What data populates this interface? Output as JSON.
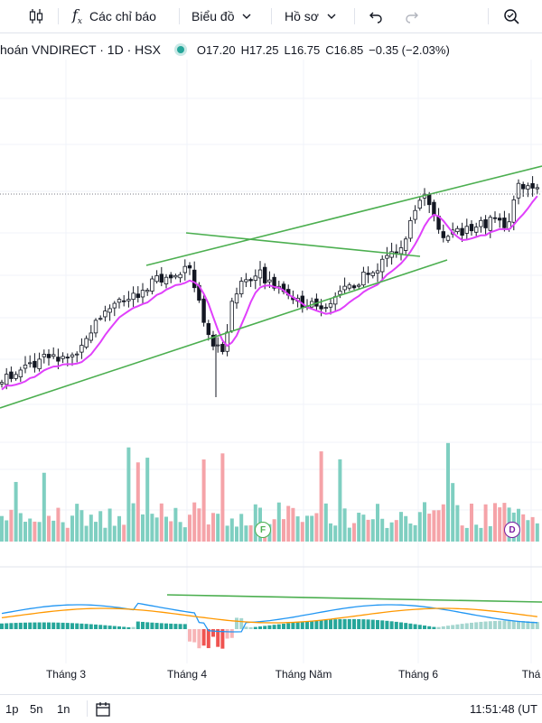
{
  "toolbar": {
    "indicators_label": "Các chỉ báo",
    "chart_label": "Biểu đồ",
    "profile_label": "Hồ sơ"
  },
  "legend": {
    "symbol": "hoán VNDIRECT · 1D · HSX",
    "open": "O17.20",
    "high": "H17.25",
    "low": "L16.75",
    "close": "C16.85",
    "change": "−0.35 (−2.03%)"
  },
  "xaxis": {
    "labels": [
      "Tháng 3",
      "Tháng 4",
      "Tháng Năm",
      "Tháng 6",
      "Thá"
    ]
  },
  "markers": {
    "f": "F",
    "d": "D"
  },
  "bottom": {
    "ranges": [
      "1p",
      "5n",
      "1n"
    ],
    "time": "11:51:48 (UT"
  },
  "colors": {
    "up": "#26a69a",
    "down": "#ef5350",
    "ma": "#e040fb",
    "trend": "#4caf50",
    "vol_up": "#7fcfc1",
    "vol_down": "#f5a3a8",
    "macd": "#2196f3",
    "signal": "#ff9800"
  },
  "icons": [
    "candles-icon",
    "fx-icon",
    "chevron-down-icon",
    "undo-icon",
    "redo-icon",
    "search-icon",
    "calendar-icon"
  ]
}
